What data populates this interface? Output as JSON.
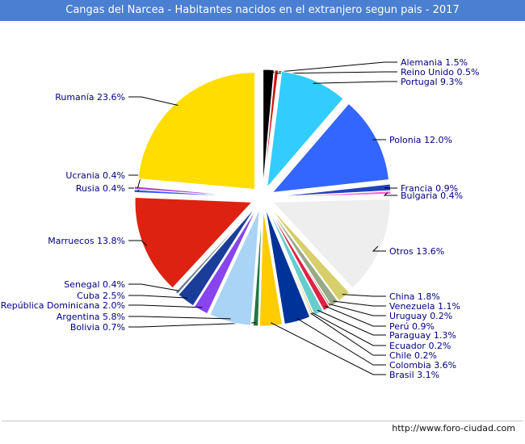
{
  "title": "Cangas del Narcea - Habitantes nacidos en el extranjero segun pais - 2017",
  "footer": "http://www.foro-ciudad.com",
  "colors": {
    "title_bg": "#4a7fd1",
    "label_text": "#000080"
  },
  "chart_data": {
    "type": "pie",
    "title": "Cangas del Narcea - Habitantes nacidos en el extranjero segun pais - 2017",
    "unit": "%",
    "slices": [
      {
        "label": "Alemania",
        "value": 1.5,
        "display": "Alemania 1.5%",
        "color": "#000000"
      },
      {
        "label": "Reino Unido",
        "value": 0.5,
        "display": "Reino Unido 0.5%",
        "color": "#cc1111"
      },
      {
        "label": "Portugal",
        "value": 9.3,
        "display": "Portugal 9.3%",
        "color": "#33ccff"
      },
      {
        "label": "Polonia",
        "value": 12.0,
        "display": "Polonia 12.0%",
        "color": "#3366ff"
      },
      {
        "label": "Francia",
        "value": 0.9,
        "display": "Francia 0.9%",
        "color": "#2244bb"
      },
      {
        "label": "Bulgaria",
        "value": 0.4,
        "display": "Bulgaria 0.4%",
        "color": "#ff66cc"
      },
      {
        "label": "Otros",
        "value": 13.6,
        "display": "Otros 13.6%",
        "color": "#eeeeee"
      },
      {
        "label": "China",
        "value": 1.8,
        "display": "China 1.8%",
        "color": "#d6cf6a"
      },
      {
        "label": "Venezuela",
        "value": 1.1,
        "display": "Venezuela 1.1%",
        "color": "#99aa88"
      },
      {
        "label": "Uruguay",
        "value": 0.2,
        "display": "Uruguay 0.2%",
        "color": "#996633"
      },
      {
        "label": "Perú",
        "value": 0.9,
        "display": "Perú 0.9%",
        "color": "#dd2244"
      },
      {
        "label": "Paraguay",
        "value": 1.3,
        "display": "Paraguay 1.3%",
        "color": "#66cccc"
      },
      {
        "label": "Ecuador",
        "value": 0.2,
        "display": "Ecuador 0.2%",
        "color": "#ccaa00"
      },
      {
        "label": "Chile",
        "value": 0.2,
        "display": "Chile 0.2%",
        "color": "#cccccc"
      },
      {
        "label": "Colombia",
        "value": 3.6,
        "display": "Colombia 3.6%",
        "color": "#003399"
      },
      {
        "label": "Brasil",
        "value": 3.1,
        "display": "Brasil 3.1%",
        "color": "#ffcc00"
      },
      {
        "label": "Bolivia",
        "value": 0.7,
        "display": "Bolivia 0.7%",
        "color": "#227744"
      },
      {
        "label": "Argentina",
        "value": 5.8,
        "display": "Argentina 5.8%",
        "color": "#aad4f5"
      },
      {
        "label": "República Dominicana",
        "value": 2.0,
        "display": "República Dominicana 2.0%",
        "color": "#8844ee"
      },
      {
        "label": "Cuba",
        "value": 2.5,
        "display": "Cuba 2.5%",
        "color": "#1a3d99"
      },
      {
        "label": "Senegal",
        "value": 0.4,
        "display": "Senegal 0.4%",
        "color": "#667788"
      },
      {
        "label": "Marruecos",
        "value": 13.8,
        "display": "Marruecos 13.8%",
        "color": "#dd2211"
      },
      {
        "label": "Rusia",
        "value": 0.4,
        "display": "Rusia 0.4%",
        "color": "#3355ff"
      },
      {
        "label": "Ucrania",
        "value": 0.4,
        "display": "Ucrania 0.4%",
        "color": "#aa44cc"
      },
      {
        "label": "Rumanía",
        "value": 23.6,
        "display": "Rumanía 23.6%",
        "color": "#ffdd00"
      }
    ]
  }
}
